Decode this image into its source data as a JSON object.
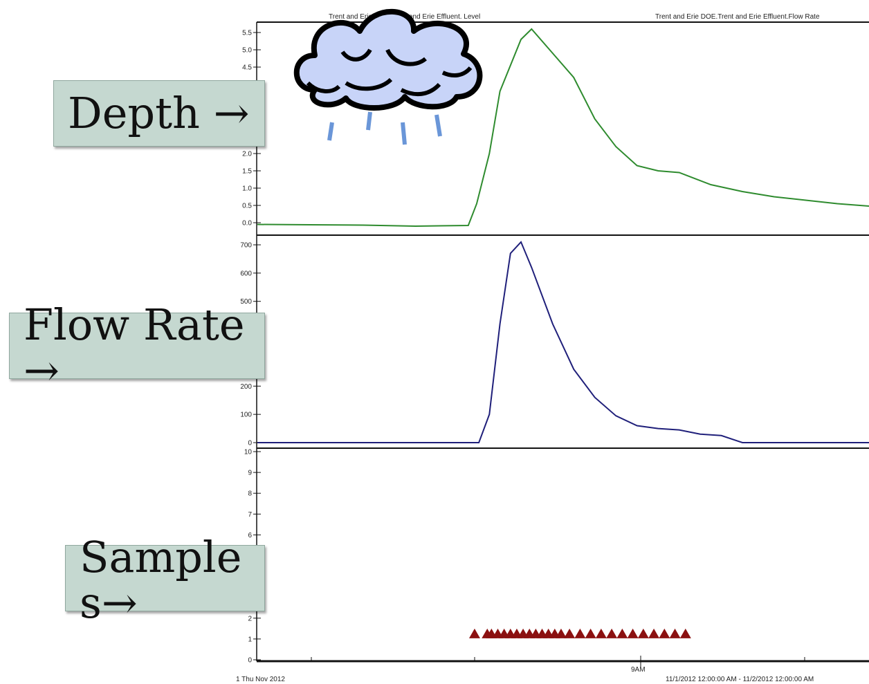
{
  "header": {
    "level_title": "Trent and Erie DOE.Trent and Erie Effluent. Level",
    "flow_title": "Trent and Erie DOE.Trent and Erie Effluent.Flow Rate"
  },
  "callouts": {
    "depth": "Depth →",
    "flow": "Flow Rate →",
    "samples": "Sample s→"
  },
  "footer": {
    "start_date": "1 Thu Nov 2012",
    "nine_am": "9AM",
    "range": "11/1/2012 12:00:00 AM - 11/2/2012 12:00:00 AM"
  },
  "colors": {
    "level_line": "#2e8b2e",
    "flow_line": "#1f1f7a",
    "sample_marker": "#8b1010",
    "cloud_fill": "#c8d4f8",
    "rain": "#6a96d8"
  },
  "icons": [
    "rain-cloud-icon"
  ],
  "chart_data": [
    {
      "type": "line",
      "series": [
        {
          "name": "Level",
          "x": [
            0.0,
            2.5,
            5.0,
            7.5,
            10.0,
            10.4,
            11.0,
            11.5,
            12.5,
            13.0,
            14.0,
            15.0,
            16.0,
            17.0,
            18.0,
            19.0,
            20.0,
            21.5,
            23.0,
            24.5,
            26.0,
            27.5,
            29.0
          ],
          "values": [
            -0.05,
            -0.06,
            -0.07,
            -0.1,
            -0.08,
            0.55,
            2.0,
            3.8,
            5.3,
            5.6,
            4.9,
            4.2,
            3.0,
            2.2,
            1.65,
            1.5,
            1.45,
            1.1,
            0.9,
            0.75,
            0.65,
            0.55,
            0.48
          ]
        }
      ],
      "ylim": [
        -0.1,
        5.7
      ],
      "yticks": [
        0.0,
        0.5,
        1.0,
        1.5,
        2.0,
        4.5,
        5.0,
        5.5
      ]
    },
    {
      "type": "line",
      "series": [
        {
          "name": "Flow Rate",
          "x": [
            0.0,
            5.0,
            10.0,
            10.5,
            11.0,
            11.5,
            12.0,
            12.5,
            13.0,
            14.0,
            15.0,
            16.0,
            17.0,
            18.0,
            19.0,
            20.0,
            21.0,
            22.0,
            23.0,
            24.0,
            29.0
          ],
          "values": [
            0,
            0,
            0,
            0,
            100,
            420,
            670,
            710,
            620,
            420,
            260,
            160,
            95,
            60,
            50,
            45,
            30,
            25,
            0,
            0,
            0
          ]
        }
      ],
      "ylim": [
        0,
        720
      ],
      "yticks": [
        0,
        100,
        200,
        500,
        600,
        700
      ]
    },
    {
      "type": "scatter",
      "series": [
        {
          "name": "Samples",
          "x": [
            10.3,
            10.9,
            11.1,
            11.4,
            11.7,
            12.0,
            12.3,
            12.6,
            12.9,
            13.2,
            13.5,
            13.8,
            14.1,
            14.4,
            14.8,
            15.3,
            15.8,
            16.3,
            16.8,
            17.3,
            17.8,
            18.3,
            18.8,
            19.3,
            19.8,
            20.3
          ],
          "values": [
            1.2,
            1.2,
            1.2,
            1.2,
            1.2,
            1.2,
            1.2,
            1.2,
            1.2,
            1.2,
            1.2,
            1.2,
            1.2,
            1.2,
            1.2,
            1.2,
            1.2,
            1.2,
            1.2,
            1.2,
            1.2,
            1.2,
            1.2,
            1.2,
            1.2,
            1.2
          ]
        }
      ],
      "ylim": [
        0,
        10
      ],
      "yticks": [
        0,
        1,
        2,
        6,
        7,
        8,
        9,
        10
      ]
    }
  ]
}
